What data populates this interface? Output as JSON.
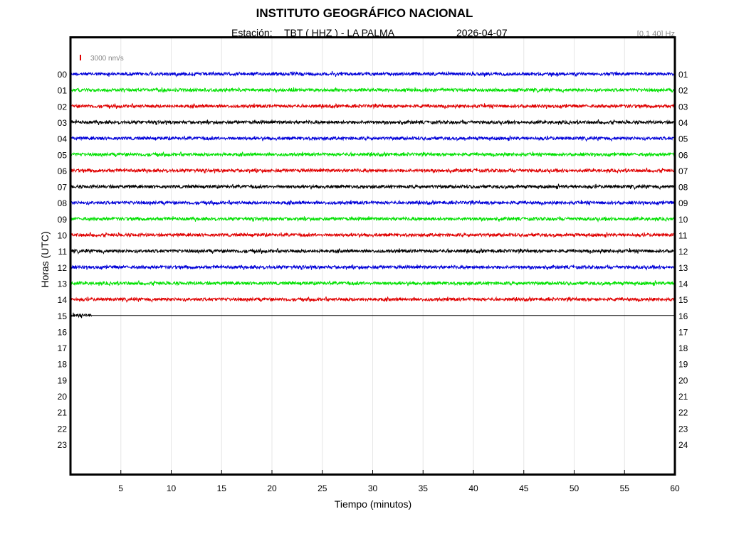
{
  "header": {
    "title": "INSTITUTO GEOGRÁFICO NACIONAL",
    "station_label": "Estación:",
    "station": "TBT ( HHZ ) - LA PALMA",
    "date": "2026-04-07",
    "filter": "[0.1 40] Hz"
  },
  "chart_data": {
    "type": "line",
    "title": "INSTITUTO GEOGRÁFICO NACIONAL",
    "xlabel": "Tiempo (minutos)",
    "ylabel": "Horas (UTC)",
    "xlim": [
      0,
      60
    ],
    "x_ticks": [
      5,
      10,
      15,
      20,
      25,
      30,
      35,
      40,
      45,
      50,
      55,
      60
    ],
    "grid": true,
    "scale_bar_label": "3000 nm/s",
    "scale_bar_color": "#e00000",
    "left_hour_labels": [
      "00",
      "01",
      "02",
      "03",
      "04",
      "05",
      "06",
      "07",
      "08",
      "09",
      "10",
      "11",
      "12",
      "13",
      "14",
      "15",
      "16",
      "17",
      "18",
      "19",
      "20",
      "21",
      "22",
      "23"
    ],
    "right_hour_labels": [
      "01",
      "02",
      "03",
      "04",
      "05",
      "06",
      "07",
      "08",
      "09",
      "10",
      "11",
      "12",
      "13",
      "14",
      "15",
      "16",
      "17",
      "18",
      "19",
      "20",
      "21",
      "22",
      "23",
      "24"
    ],
    "color_cycle": [
      "#0000d8",
      "#00e000",
      "#e00000",
      "#000000"
    ],
    "traces": [
      {
        "hour": "00",
        "start_min": 0,
        "end_min": 60,
        "color": "#0000d8"
      },
      {
        "hour": "01",
        "start_min": 0,
        "end_min": 60,
        "color": "#00e000"
      },
      {
        "hour": "02",
        "start_min": 0,
        "end_min": 60,
        "color": "#e00000"
      },
      {
        "hour": "03",
        "start_min": 0,
        "end_min": 60,
        "color": "#000000"
      },
      {
        "hour": "04",
        "start_min": 0,
        "end_min": 60,
        "color": "#0000d8"
      },
      {
        "hour": "05",
        "start_min": 0,
        "end_min": 60,
        "color": "#00e000"
      },
      {
        "hour": "06",
        "start_min": 0,
        "end_min": 60,
        "color": "#e00000"
      },
      {
        "hour": "07",
        "start_min": 0,
        "end_min": 60,
        "color": "#000000"
      },
      {
        "hour": "08",
        "start_min": 0,
        "end_min": 60,
        "color": "#0000d8"
      },
      {
        "hour": "09",
        "start_min": 0,
        "end_min": 60,
        "color": "#00e000"
      },
      {
        "hour": "10",
        "start_min": 0,
        "end_min": 60,
        "color": "#e00000"
      },
      {
        "hour": "11",
        "start_min": 0,
        "end_min": 60,
        "color": "#000000"
      },
      {
        "hour": "12",
        "start_min": 0,
        "end_min": 60,
        "color": "#0000d8"
      },
      {
        "hour": "13",
        "start_min": 0,
        "end_min": 60,
        "color": "#00e000"
      },
      {
        "hour": "14",
        "start_min": 0,
        "end_min": 60,
        "color": "#e00000"
      },
      {
        "hour": "15",
        "start_min": 0,
        "end_min": 2.1,
        "color": "#000000",
        "baseline_to_min": 60
      }
    ]
  }
}
